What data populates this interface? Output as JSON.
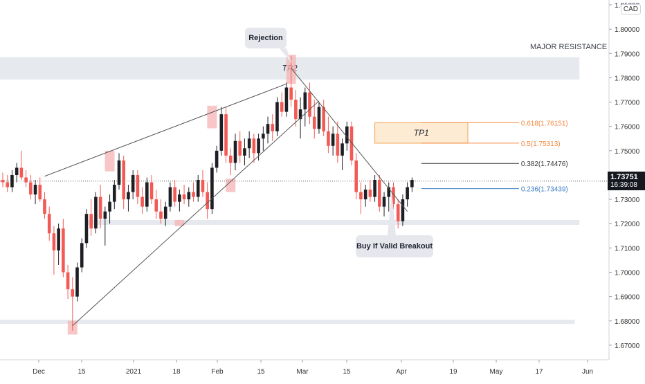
{
  "chart_data": {
    "type": "candlestick",
    "currency_label": "CAD",
    "last_price": "1.73751",
    "countdown": "16:39:08",
    "y_range": [
      1.664,
      1.812
    ],
    "y_ticks": [
      "1.81000",
      "1.80000",
      "1.79000",
      "1.78000",
      "1.77000",
      "1.76000",
      "1.75000",
      "1.74000",
      "1.73000",
      "1.72000",
      "1.71000",
      "1.70000",
      "1.69000",
      "1.68000",
      "1.67000"
    ],
    "x_labels": [
      "Dec",
      "15",
      "2021",
      "18",
      "Feb",
      "15",
      "Mar",
      "15",
      "Apr",
      "19",
      "May",
      "17",
      "Jun"
    ],
    "colors": {
      "up": "#26a69a",
      "down": "#ef5350",
      "candle_up": "#1e1f24",
      "candle_down": "#f25a55"
    },
    "candles": [
      [
        1.738,
        1.741,
        1.735,
        1.737
      ],
      [
        1.737,
        1.74,
        1.733,
        1.735
      ],
      [
        1.735,
        1.742,
        1.733,
        1.74
      ],
      [
        1.74,
        1.745,
        1.737,
        1.743
      ],
      [
        1.743,
        1.75,
        1.738,
        1.739
      ],
      [
        1.739,
        1.742,
        1.735,
        1.737
      ],
      [
        1.737,
        1.74,
        1.73,
        1.732
      ],
      [
        1.732,
        1.738,
        1.728,
        1.736
      ],
      [
        1.736,
        1.739,
        1.729,
        1.73
      ],
      [
        1.73,
        1.733,
        1.722,
        1.724
      ],
      [
        1.724,
        1.727,
        1.713,
        1.716
      ],
      [
        1.716,
        1.719,
        1.699,
        1.709
      ],
      [
        1.709,
        1.72,
        1.703,
        1.718
      ],
      [
        1.718,
        1.722,
        1.698,
        1.7
      ],
      [
        1.7,
        1.703,
        1.689,
        1.693
      ],
      [
        1.693,
        1.698,
        1.676,
        1.69
      ],
      [
        1.69,
        1.704,
        1.688,
        1.702
      ],
      [
        1.702,
        1.714,
        1.7,
        1.712
      ],
      [
        1.712,
        1.726,
        1.71,
        1.724
      ],
      [
        1.724,
        1.73,
        1.715,
        1.718
      ],
      [
        1.718,
        1.733,
        1.716,
        1.731
      ],
      [
        1.731,
        1.736,
        1.718,
        1.722
      ],
      [
        1.722,
        1.727,
        1.711,
        1.725
      ],
      [
        1.725,
        1.732,
        1.72,
        1.729
      ],
      [
        1.729,
        1.738,
        1.726,
        1.736
      ],
      [
        1.736,
        1.749,
        1.734,
        1.746
      ],
      [
        1.746,
        1.748,
        1.726,
        1.73
      ],
      [
        1.73,
        1.736,
        1.725,
        1.733
      ],
      [
        1.733,
        1.742,
        1.73,
        1.74
      ],
      [
        1.74,
        1.742,
        1.728,
        1.731
      ],
      [
        1.731,
        1.735,
        1.724,
        1.727
      ],
      [
        1.727,
        1.739,
        1.725,
        1.737
      ],
      [
        1.737,
        1.74,
        1.728,
        1.73
      ],
      [
        1.73,
        1.734,
        1.722,
        1.725
      ],
      [
        1.725,
        1.73,
        1.72,
        1.722
      ],
      [
        1.722,
        1.729,
        1.719,
        1.727
      ],
      [
        1.727,
        1.737,
        1.725,
        1.735
      ],
      [
        1.735,
        1.738,
        1.727,
        1.729
      ],
      [
        1.729,
        1.734,
        1.725,
        1.732
      ],
      [
        1.732,
        1.736,
        1.728,
        1.73
      ],
      [
        1.73,
        1.735,
        1.727,
        1.733
      ],
      [
        1.733,
        1.737,
        1.729,
        1.731
      ],
      [
        1.731,
        1.74,
        1.729,
        1.738
      ],
      [
        1.738,
        1.742,
        1.731,
        1.733
      ],
      [
        1.733,
        1.737,
        1.722,
        1.726
      ],
      [
        1.726,
        1.745,
        1.724,
        1.743
      ],
      [
        1.743,
        1.752,
        1.741,
        1.75
      ],
      [
        1.75,
        1.768,
        1.748,
        1.765
      ],
      [
        1.765,
        1.768,
        1.745,
        1.748
      ],
      [
        1.748,
        1.751,
        1.74,
        1.745
      ],
      [
        1.745,
        1.757,
        1.742,
        1.754
      ],
      [
        1.754,
        1.758,
        1.745,
        1.748
      ],
      [
        1.748,
        1.755,
        1.744,
        1.751
      ],
      [
        1.751,
        1.758,
        1.747,
        1.755
      ],
      [
        1.755,
        1.757,
        1.745,
        1.749
      ],
      [
        1.749,
        1.757,
        1.746,
        1.755
      ],
      [
        1.755,
        1.76,
        1.75,
        1.757
      ],
      [
        1.757,
        1.764,
        1.753,
        1.761
      ],
      [
        1.761,
        1.765,
        1.754,
        1.758
      ],
      [
        1.758,
        1.772,
        1.756,
        1.77
      ],
      [
        1.77,
        1.774,
        1.764,
        1.766
      ],
      [
        1.766,
        1.778,
        1.764,
        1.776
      ],
      [
        1.776,
        1.789,
        1.768,
        1.771
      ],
      [
        1.771,
        1.775,
        1.76,
        1.763
      ],
      [
        1.763,
        1.772,
        1.755,
        1.767
      ],
      [
        1.767,
        1.776,
        1.76,
        1.774
      ],
      [
        1.774,
        1.778,
        1.761,
        1.764
      ],
      [
        1.764,
        1.771,
        1.755,
        1.759
      ],
      [
        1.759,
        1.77,
        1.757,
        1.768
      ],
      [
        1.768,
        1.771,
        1.756,
        1.758
      ],
      [
        1.758,
        1.764,
        1.749,
        1.752
      ],
      [
        1.752,
        1.76,
        1.748,
        1.757
      ],
      [
        1.757,
        1.762,
        1.745,
        1.748
      ],
      [
        1.748,
        1.755,
        1.742,
        1.753
      ],
      [
        1.753,
        1.762,
        1.75,
        1.76
      ],
      [
        1.76,
        1.762,
        1.744,
        1.746
      ],
      [
        1.746,
        1.749,
        1.73,
        1.733
      ],
      [
        1.733,
        1.737,
        1.724,
        1.73
      ],
      [
        1.73,
        1.736,
        1.727,
        1.734
      ],
      [
        1.734,
        1.738,
        1.729,
        1.731
      ],
      [
        1.731,
        1.74,
        1.729,
        1.738
      ],
      [
        1.738,
        1.74,
        1.725,
        1.727
      ],
      [
        1.727,
        1.733,
        1.723,
        1.731
      ],
      [
        1.731,
        1.737,
        1.725,
        1.735
      ],
      [
        1.735,
        1.737,
        1.726,
        1.728
      ],
      [
        1.728,
        1.73,
        1.718,
        1.721
      ],
      [
        1.721,
        1.732,
        1.719,
        1.73
      ],
      [
        1.73,
        1.737,
        1.727,
        1.735
      ],
      [
        1.735,
        1.739,
        1.733,
        1.738
      ]
    ],
    "zones": [
      {
        "name": "major-resistance-zone",
        "label": "TP2",
        "y_top": 1.7885,
        "y_bottom": 1.7793,
        "x_start_index": -1,
        "x_end_index": 124,
        "fill": "#e6e9ee"
      },
      {
        "name": "support-zone-1",
        "label": "",
        "y_top": 1.7215,
        "y_bottom": 1.7195,
        "x_start_index": 18,
        "x_end_index": 124,
        "fill": "#e6e9ee"
      },
      {
        "name": "support-zone-2",
        "label": "",
        "y_top": 1.6805,
        "y_bottom": 1.6788,
        "x_start_index": -1,
        "x_end_index": 123,
        "fill": "#e6e9ee"
      },
      {
        "name": "tp1-zone",
        "label": "TP1",
        "y_top": 1.7615,
        "y_bottom": 1.7531,
        "x_start_index": 80,
        "x_end_index": 100,
        "fill": "#fdebd4",
        "stroke": "#f3a34d"
      }
    ],
    "fib_levels": [
      {
        "name": "fib-0.618",
        "label": "0.618(1.76151)",
        "value": 1.76151,
        "color": "#f4883e"
      },
      {
        "name": "fib-0.5",
        "label": "0.5(1.75313)",
        "value": 1.75313,
        "color": "#f4883e"
      },
      {
        "name": "fib-0.382",
        "label": "0.382(1.74476)",
        "value": 1.74476,
        "color": "#333333"
      },
      {
        "name": "fib-0.236",
        "label": "0.236(1.73439)",
        "value": 1.73439,
        "color": "#3a7ec4"
      }
    ],
    "trendlines": [
      {
        "name": "rising-wedge-top",
        "from": [
          9,
          1.7395
        ],
        "to": [
          61,
          1.7775
        ],
        "color": "#555"
      },
      {
        "name": "rising-wedge-bottom",
        "from": [
          15,
          1.678
        ],
        "to": [
          68,
          1.7705
        ],
        "color": "#555"
      },
      {
        "name": "descending-trendline",
        "from": [
          62,
          1.784
        ],
        "to": [
          87,
          1.725
        ],
        "color": "#555"
      }
    ],
    "highlights": [
      {
        "name": "highlight-low-dec",
        "index": 15,
        "y_top": 1.68,
        "y_bottom": 1.6744
      },
      {
        "name": "highlight-high-dec",
        "index": 23,
        "y_top": 1.75,
        "y_bottom": 1.7415
      },
      {
        "name": "highlight-low-jan",
        "index": 38,
        "y_top": 1.7215,
        "y_bottom": 1.719
      },
      {
        "name": "highlight-high-feb",
        "index": 45,
        "y_top": 1.7685,
        "y_bottom": 1.7592
      },
      {
        "name": "highlight-low-feb",
        "index": 49,
        "y_top": 1.7385,
        "y_bottom": 1.733
      },
      {
        "name": "highlight-rejection",
        "index": 62,
        "y_top": 1.7895,
        "y_bottom": 1.7775
      }
    ],
    "annotations": {
      "major_resistance": "MAJOR RESISTANCE",
      "rejection": "Rejection",
      "buy_label": "Buy If Valid Breakout",
      "tp2": "TP2",
      "tp1": "TP1"
    }
  }
}
